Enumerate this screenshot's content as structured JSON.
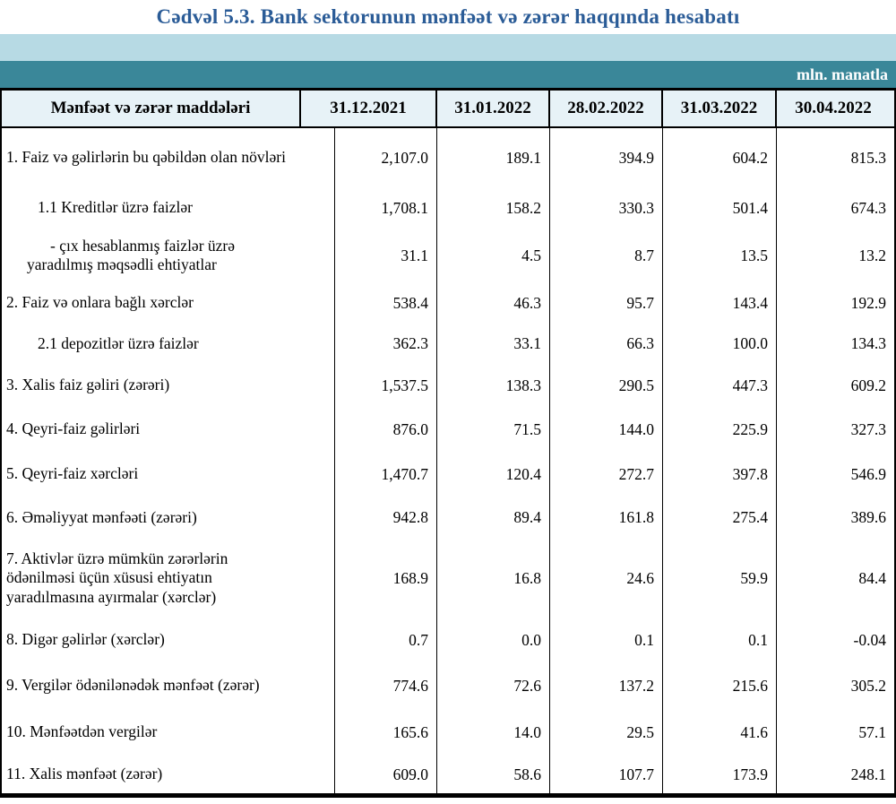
{
  "page": {
    "title": "Cədvəl 5.3. Bank sektorunun mənfəət və zərər haqqında hesabatı",
    "unit_label": "mln. manatla"
  },
  "colors": {
    "title_blue": "#2b5c97",
    "band_light": "#b7dae4",
    "band_teal": "#3a8799",
    "header_bg": "#e7f2f7"
  },
  "table": {
    "header": {
      "label": "Mənfəət və zərər maddələri",
      "columns": [
        "31.12.2021",
        "31.01.2022",
        "28.02.2022",
        "31.03.2022",
        "30.04.2022"
      ]
    },
    "rows": [
      {
        "label": "1. Faiz və gəlirlərin bu qəbildən olan növləri",
        "indent": "main",
        "values": [
          "2,107.0",
          "189.1",
          "394.9",
          "604.2",
          "815.3"
        ]
      },
      {
        "label": "1.1 Kreditlər üzrə faizlər",
        "indent": "sub",
        "values": [
          "1,708.1",
          "158.2",
          "330.3",
          "501.4",
          "674.3"
        ]
      },
      {
        "label": "-  çıx hesablanmış faizlər üzrə\nyaradılmış məqsədli ehtiyatlar",
        "indent": "dash",
        "values": [
          "31.1",
          "4.5",
          "8.7",
          "13.5",
          "13.2"
        ]
      },
      {
        "label": "2. Faiz və onlara bağlı xərclər",
        "indent": "main",
        "values": [
          "538.4",
          "46.3",
          "95.7",
          "143.4",
          "192.9"
        ]
      },
      {
        "label": "2.1 depozitlər üzrə faizlər",
        "indent": "sub",
        "values": [
          "362.3",
          "33.1",
          "66.3",
          "100.0",
          "134.3"
        ]
      },
      {
        "label": "3. Xalis faiz gəliri (zərəri)",
        "indent": "main",
        "values": [
          "1,537.5",
          "138.3",
          "290.5",
          "447.3",
          "609.2"
        ]
      },
      {
        "label": "4. Qeyri-faiz gəlirləri",
        "indent": "main",
        "values": [
          "876.0",
          "71.5",
          "144.0",
          "225.9",
          "327.3"
        ]
      },
      {
        "label": "5. Qeyri-faiz xərcləri",
        "indent": "main",
        "values": [
          "1,470.7",
          "120.4",
          "272.7",
          "397.8",
          "546.9"
        ]
      },
      {
        "label": "6. Əməliyyat mənfəəti (zərəri)",
        "indent": "main",
        "values": [
          "942.8",
          "89.4",
          "161.8",
          "275.4",
          "389.6"
        ]
      },
      {
        "label": "7. Aktivlər üzrə mümkün zərərlərin\nödənilməsi üçün xüsusi ehtiyatın\nyaradılmasına ayırmalar (xərclər)",
        "indent": "main",
        "values": [
          "168.9",
          "16.8",
          "24.6",
          "59.9",
          "84.4"
        ]
      },
      {
        "label": "8. Digər gəlirlər (xərclər)",
        "indent": "main",
        "values": [
          "0.7",
          "0.0",
          "0.1",
          "0.1",
          "-0.04"
        ]
      },
      {
        "label": "9. Vergilər ödənilənədək mənfəət (zərər)",
        "indent": "main",
        "values": [
          "774.6",
          "72.6",
          "137.2",
          "215.6",
          "305.2"
        ]
      },
      {
        "label": "10. Mənfəətdən vergilər",
        "indent": "main",
        "values": [
          "165.6",
          "14.0",
          "29.5",
          "41.6",
          "57.1"
        ]
      },
      {
        "label": "11. Xalis mənfəət (zərər)",
        "indent": "main",
        "values": [
          "609.0",
          "58.6",
          "107.7",
          "173.9",
          "248.1"
        ]
      }
    ]
  }
}
